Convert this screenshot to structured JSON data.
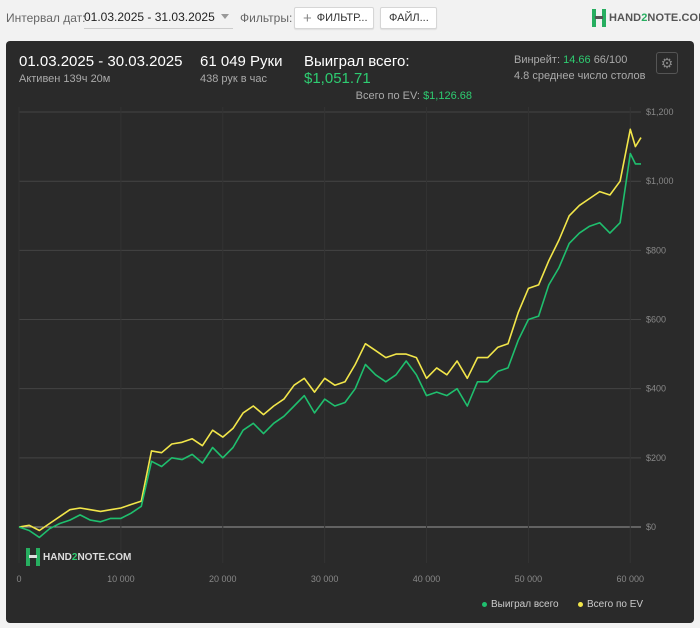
{
  "toolbar": {
    "interval_label": "Интервал дат:",
    "date_range": "01.03.2025 - 31.03.2025",
    "filters_label": "Фильтры:",
    "filter_button": "ФИЛЬТР...",
    "file_button": "ФАЙЛ...",
    "logo_prefix": "HAND",
    "logo_two": "2",
    "logo_suffix": "NOTE.COM"
  },
  "stats": {
    "period": "01.03.2025 - 30.03.2025",
    "active": "Активен 139ч 20м",
    "hands": "61 049 Руки",
    "hands_per_hour": "438 рук в час",
    "won_label": "Выиграл всего:",
    "won_value": "$1,051.71",
    "ev_label": "Всего по EV:",
    "ev_value": "$1,126.68",
    "winrate_label": "Винрейт:",
    "winrate_value": "14.66",
    "winrate_suffix": "66/100",
    "tables": "4.8 среднее число столов"
  },
  "colors": {
    "won": "#1fbf6e",
    "ev": "#f2e64a",
    "grid": "#444444",
    "zero": "#9a9a9a"
  },
  "chart_data": {
    "type": "line",
    "x_ticks": [
      "0",
      "10 000",
      "20 000",
      "30 000",
      "40 000",
      "50 000",
      "60 000"
    ],
    "y_ticks": [
      "$0",
      "$200",
      "$400",
      "$600",
      "$800",
      "$1,000",
      "$1,200"
    ],
    "xlim": [
      0,
      61049
    ],
    "ylim": [
      -60,
      1240
    ],
    "x": [
      0,
      1000,
      2000,
      3000,
      4000,
      5000,
      6000,
      7000,
      8000,
      9000,
      10000,
      11000,
      12000,
      13000,
      14000,
      15000,
      16000,
      17000,
      18000,
      19000,
      20000,
      21000,
      22000,
      23000,
      24000,
      25000,
      26000,
      27000,
      28000,
      29000,
      30000,
      31000,
      32000,
      33000,
      34000,
      35000,
      36000,
      37000,
      38000,
      39000,
      40000,
      41000,
      42000,
      43000,
      44000,
      45000,
      46000,
      47000,
      48000,
      49000,
      50000,
      51000,
      52000,
      53000,
      54000,
      55000,
      56000,
      57000,
      58000,
      59000,
      60000,
      60500,
      61049
    ],
    "series": [
      {
        "name": "Выиграл всего",
        "values": [
          0,
          -10,
          -30,
          -5,
          10,
          20,
          35,
          20,
          15,
          25,
          25,
          40,
          60,
          190,
          175,
          200,
          195,
          210,
          185,
          230,
          200,
          230,
          280,
          300,
          270,
          300,
          320,
          350,
          380,
          330,
          370,
          350,
          360,
          400,
          470,
          440,
          420,
          440,
          480,
          440,
          380,
          390,
          380,
          400,
          350,
          420,
          420,
          450,
          460,
          540,
          600,
          610,
          700,
          750,
          820,
          850,
          870,
          880,
          850,
          880,
          1080,
          1050,
          1050
        ]
      },
      {
        "name": "Всего по EV",
        "values": [
          0,
          5,
          -10,
          10,
          30,
          50,
          55,
          50,
          45,
          50,
          55,
          65,
          75,
          220,
          215,
          240,
          245,
          255,
          235,
          280,
          260,
          285,
          330,
          350,
          325,
          350,
          370,
          410,
          430,
          390,
          430,
          410,
          420,
          470,
          530,
          510,
          490,
          500,
          500,
          490,
          430,
          460,
          440,
          480,
          430,
          490,
          490,
          520,
          530,
          620,
          690,
          700,
          770,
          830,
          900,
          930,
          950,
          970,
          960,
          1000,
          1150,
          1100,
          1126
        ]
      }
    ],
    "legend_placement": "bottom-right",
    "grid": true
  }
}
